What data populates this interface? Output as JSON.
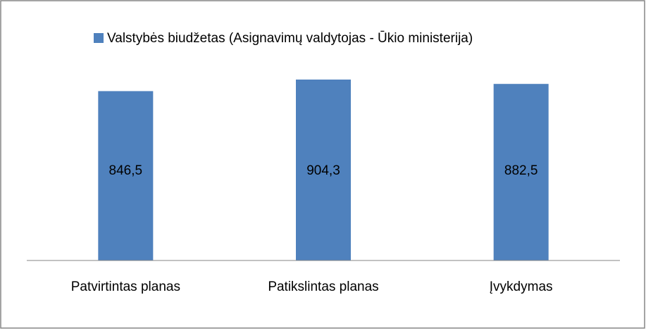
{
  "chart_data": {
    "type": "bar",
    "categories": [
      "Patvirtintas planas",
      "Patikslintas planas",
      "Įvykdymas"
    ],
    "series": [
      {
        "name": "Valstybės biudžetas (Asignavimų valdytojas - Ūkio ministerija)",
        "color": "#4f81bd",
        "values": [
          846.5,
          904.3,
          882.5
        ],
        "value_labels": [
          "846,5",
          "904,3",
          "882,5"
        ]
      }
    ],
    "legend": "top"
  }
}
